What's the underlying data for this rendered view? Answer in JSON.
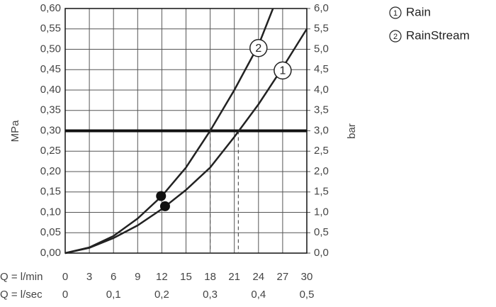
{
  "chart_data": {
    "type": "line",
    "y_label": "MPa",
    "y2_label": "bar",
    "x_label": "Q = l/min",
    "x2_label": "Q = l/sec",
    "xlim": [
      0,
      30
    ],
    "xticks": [
      0,
      3,
      6,
      9,
      12,
      15,
      18,
      21,
      24,
      27,
      30
    ],
    "x2lim": [
      0,
      0.5
    ],
    "x2ticks": [
      0,
      {
        "value": 0.1,
        "label": "0,1"
      },
      {
        "value": 0.2,
        "label": "0,2"
      },
      {
        "value": 0.3,
        "label": "0,3"
      },
      {
        "value": 0.4,
        "label": "0,4"
      },
      {
        "value": 0.5,
        "label": "0,5"
      }
    ],
    "ylim": [
      0,
      0.6
    ],
    "yticks": [
      {
        "value": 0,
        "label": "0,00"
      },
      {
        "value": 0.05,
        "label": "0,05"
      },
      {
        "value": 0.1,
        "label": "0,10"
      },
      {
        "value": 0.15,
        "label": "0,15"
      },
      {
        "value": 0.2,
        "label": "0,20"
      },
      {
        "value": 0.25,
        "label": "0,25"
      },
      {
        "value": 0.3,
        "label": "0,30"
      },
      {
        "value": 0.35,
        "label": "0,35"
      },
      {
        "value": 0.4,
        "label": "0,40"
      },
      {
        "value": 0.45,
        "label": "0,45"
      },
      {
        "value": 0.5,
        "label": "0,50"
      },
      {
        "value": 0.55,
        "label": "0,55"
      },
      {
        "value": 0.6,
        "label": "0,60"
      }
    ],
    "y2lim": [
      0,
      6
    ],
    "y2ticks": [
      {
        "value": 0,
        "label": "0,0"
      },
      {
        "value": 0.5,
        "label": "0,5"
      },
      {
        "value": 1,
        "label": "1,0"
      },
      {
        "value": 1.5,
        "label": "1,5"
      },
      {
        "value": 2,
        "label": "2,0"
      },
      {
        "value": 2.5,
        "label": "2,5"
      },
      {
        "value": 3,
        "label": "3,0"
      },
      {
        "value": 3.5,
        "label": "3,5"
      },
      {
        "value": 4,
        "label": "4,0"
      },
      {
        "value": 4.5,
        "label": "4,5"
      },
      {
        "value": 5,
        "label": "5,0"
      },
      {
        "value": 5.5,
        "label": "5,5"
      },
      {
        "value": 6,
        "label": "6,0"
      }
    ],
    "grid": true,
    "reference_line": 0.3,
    "drop_lines": [
      {
        "x": 18,
        "y": 0.3
      },
      {
        "x": 21.5,
        "y": 0.3
      }
    ],
    "points": [
      {
        "x": 12.4,
        "y": 0.115
      },
      {
        "x": 11.9,
        "y": 0.14
      }
    ],
    "series": [
      {
        "name": "Rain",
        "label": "1",
        "color": "#222222",
        "x": [
          0,
          3,
          6,
          9,
          12,
          15,
          18,
          21,
          24,
          27,
          30
        ],
        "values": [
          0,
          0.013,
          0.037,
          0.068,
          0.108,
          0.155,
          0.21,
          0.285,
          0.365,
          0.455,
          0.55
        ]
      },
      {
        "name": "RainStream",
        "label": "2",
        "color": "#222222",
        "x": [
          0,
          3,
          6,
          9,
          12,
          15,
          18,
          21,
          24,
          25.8
        ],
        "values": [
          0,
          0.014,
          0.042,
          0.085,
          0.14,
          0.21,
          0.3,
          0.4,
          0.51,
          0.6
        ]
      }
    ]
  }
}
